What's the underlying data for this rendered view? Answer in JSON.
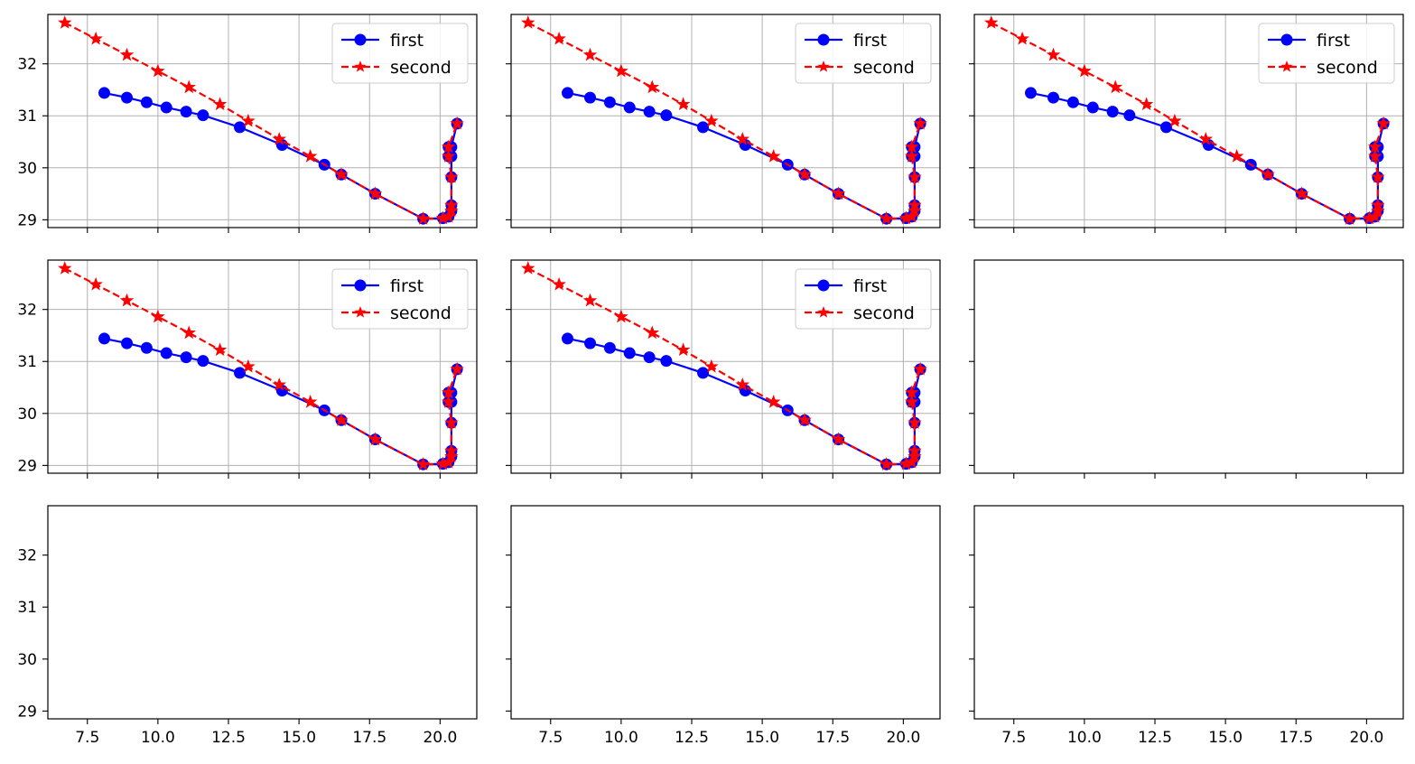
{
  "figure": {
    "grid_layout": {
      "rows": 3,
      "cols": 3
    },
    "colors": {
      "first": "#0000ff",
      "second": "#ff0000",
      "grid": "#b0b0b0",
      "axes": "#000000"
    }
  },
  "chart_data": [
    {
      "type": "line",
      "row": 0,
      "col": 0,
      "has_data": true,
      "grid": true,
      "legend": "upper right",
      "xlim": [
        6.1,
        21.3
      ],
      "ylim": [
        28.85,
        32.95
      ],
      "xticks": [
        7.5,
        10.0,
        12.5,
        15.0,
        17.5,
        20.0
      ],
      "xtick_labels_visible": false,
      "yticks": [
        29,
        30,
        31,
        32
      ],
      "ytick_labels": [
        "29",
        "30",
        "31",
        "32"
      ],
      "ytick_labels_visible": true,
      "series": [
        {
          "name": "first",
          "color": "#0000ff",
          "linestyle": "solid",
          "marker": "circle",
          "x": [
            8.1,
            8.9,
            9.6,
            10.3,
            11.0,
            11.6,
            12.9,
            14.4,
            15.9,
            16.5,
            17.7,
            19.4,
            20.1,
            20.3,
            20.4,
            20.4,
            20.4,
            20.4,
            20.3,
            20.3,
            20.4,
            20.6
          ],
          "y": [
            31.44,
            31.35,
            31.26,
            31.16,
            31.08,
            31.01,
            30.78,
            30.44,
            30.06,
            29.87,
            29.5,
            29.02,
            29.03,
            29.06,
            29.17,
            29.28,
            29.82,
            30.22,
            30.4,
            30.22,
            30.4,
            30.85
          ]
        },
        {
          "name": "second",
          "color": "#ff0000",
          "linestyle": "dashed",
          "marker": "star",
          "x": [
            6.7,
            7.8,
            8.9,
            10.0,
            11.1,
            12.2,
            13.2,
            14.3,
            15.4,
            16.5,
            17.7,
            19.4,
            20.1,
            20.3,
            20.4,
            20.4,
            20.4,
            20.3,
            20.3,
            20.6
          ],
          "y": [
            32.79,
            32.48,
            32.17,
            31.86,
            31.55,
            31.22,
            30.9,
            30.55,
            30.22,
            29.87,
            29.5,
            29.02,
            29.03,
            29.06,
            29.17,
            29.28,
            29.82,
            30.22,
            30.4,
            30.85
          ]
        }
      ]
    },
    {
      "type": "line",
      "row": 0,
      "col": 1,
      "has_data": true,
      "grid": true,
      "legend": "upper right",
      "xlim": [
        6.1,
        21.3
      ],
      "ylim": [
        28.85,
        32.95
      ],
      "xticks": [
        7.5,
        10.0,
        12.5,
        15.0,
        17.5,
        20.0
      ],
      "xtick_labels_visible": false,
      "yticks": [
        29,
        30,
        31,
        32
      ],
      "ytick_labels_visible": false,
      "series": [
        {
          "name": "first",
          "color": "#0000ff",
          "linestyle": "solid",
          "marker": "circle",
          "x": [
            8.1,
            8.9,
            9.6,
            10.3,
            11.0,
            11.6,
            12.9,
            14.4,
            15.9,
            16.5,
            17.7,
            19.4,
            20.1,
            20.3,
            20.4,
            20.4,
            20.4,
            20.4,
            20.3,
            20.3,
            20.4,
            20.6
          ],
          "y": [
            31.44,
            31.35,
            31.26,
            31.16,
            31.08,
            31.01,
            30.78,
            30.44,
            30.06,
            29.87,
            29.5,
            29.02,
            29.03,
            29.06,
            29.17,
            29.28,
            29.82,
            30.22,
            30.4,
            30.22,
            30.4,
            30.85
          ]
        },
        {
          "name": "second",
          "color": "#ff0000",
          "linestyle": "dashed",
          "marker": "star",
          "x": [
            6.7,
            7.8,
            8.9,
            10.0,
            11.1,
            12.2,
            13.2,
            14.3,
            15.4,
            16.5,
            17.7,
            19.4,
            20.1,
            20.3,
            20.4,
            20.4,
            20.4,
            20.3,
            20.3,
            20.6
          ],
          "y": [
            32.79,
            32.48,
            32.17,
            31.86,
            31.55,
            31.22,
            30.9,
            30.55,
            30.22,
            29.87,
            29.5,
            29.02,
            29.03,
            29.06,
            29.17,
            29.28,
            29.82,
            30.22,
            30.4,
            30.85
          ]
        }
      ]
    },
    {
      "type": "line",
      "row": 0,
      "col": 2,
      "has_data": true,
      "grid": true,
      "legend": "upper right",
      "xlim": [
        6.1,
        21.3
      ],
      "ylim": [
        28.85,
        32.95
      ],
      "xticks": [
        7.5,
        10.0,
        12.5,
        15.0,
        17.5,
        20.0
      ],
      "xtick_labels_visible": false,
      "yticks": [
        29,
        30,
        31,
        32
      ],
      "ytick_labels_visible": false,
      "series": [
        {
          "name": "first",
          "color": "#0000ff",
          "linestyle": "solid",
          "marker": "circle",
          "x": [
            8.1,
            8.9,
            9.6,
            10.3,
            11.0,
            11.6,
            12.9,
            14.4,
            15.9,
            16.5,
            17.7,
            19.4,
            20.1,
            20.3,
            20.4,
            20.4,
            20.4,
            20.4,
            20.3,
            20.3,
            20.4,
            20.6
          ],
          "y": [
            31.44,
            31.35,
            31.26,
            31.16,
            31.08,
            31.01,
            30.78,
            30.44,
            30.06,
            29.87,
            29.5,
            29.02,
            29.03,
            29.06,
            29.17,
            29.28,
            29.82,
            30.22,
            30.4,
            30.22,
            30.4,
            30.85
          ]
        },
        {
          "name": "second",
          "color": "#ff0000",
          "linestyle": "dashed",
          "marker": "star",
          "x": [
            6.7,
            7.8,
            8.9,
            10.0,
            11.1,
            12.2,
            13.2,
            14.3,
            15.4,
            16.5,
            17.7,
            19.4,
            20.1,
            20.3,
            20.4,
            20.4,
            20.4,
            20.3,
            20.3,
            20.6
          ],
          "y": [
            32.79,
            32.48,
            32.17,
            31.86,
            31.55,
            31.22,
            30.9,
            30.55,
            30.22,
            29.87,
            29.5,
            29.02,
            29.03,
            29.06,
            29.17,
            29.28,
            29.82,
            30.22,
            30.4,
            30.85
          ]
        }
      ]
    },
    {
      "type": "line",
      "row": 1,
      "col": 0,
      "has_data": true,
      "grid": true,
      "legend": "upper right",
      "xlim": [
        6.1,
        21.3
      ],
      "ylim": [
        28.85,
        32.95
      ],
      "xticks": [
        7.5,
        10.0,
        12.5,
        15.0,
        17.5,
        20.0
      ],
      "xtick_labels_visible": false,
      "yticks": [
        29,
        30,
        31,
        32
      ],
      "ytick_labels": [
        "29",
        "30",
        "31",
        "32"
      ],
      "ytick_labels_visible": true,
      "series": [
        {
          "name": "first",
          "color": "#0000ff",
          "linestyle": "solid",
          "marker": "circle",
          "x": [
            8.1,
            8.9,
            9.6,
            10.3,
            11.0,
            11.6,
            12.9,
            14.4,
            15.9,
            16.5,
            17.7,
            19.4,
            20.1,
            20.3,
            20.4,
            20.4,
            20.4,
            20.4,
            20.3,
            20.3,
            20.4,
            20.6
          ],
          "y": [
            31.44,
            31.35,
            31.26,
            31.16,
            31.08,
            31.01,
            30.78,
            30.44,
            30.06,
            29.87,
            29.5,
            29.02,
            29.03,
            29.06,
            29.17,
            29.28,
            29.82,
            30.22,
            30.4,
            30.22,
            30.4,
            30.85
          ]
        },
        {
          "name": "second",
          "color": "#ff0000",
          "linestyle": "dashed",
          "marker": "star",
          "x": [
            6.7,
            7.8,
            8.9,
            10.0,
            11.1,
            12.2,
            13.2,
            14.3,
            15.4,
            16.5,
            17.7,
            19.4,
            20.1,
            20.3,
            20.4,
            20.4,
            20.4,
            20.3,
            20.3,
            20.6
          ],
          "y": [
            32.79,
            32.48,
            32.17,
            31.86,
            31.55,
            31.22,
            30.9,
            30.55,
            30.22,
            29.87,
            29.5,
            29.02,
            29.03,
            29.06,
            29.17,
            29.28,
            29.82,
            30.22,
            30.4,
            30.85
          ]
        }
      ]
    },
    {
      "type": "line",
      "row": 1,
      "col": 1,
      "has_data": true,
      "grid": true,
      "legend": "upper right",
      "xlim": [
        6.1,
        21.3
      ],
      "ylim": [
        28.85,
        32.95
      ],
      "xticks": [
        7.5,
        10.0,
        12.5,
        15.0,
        17.5,
        20.0
      ],
      "xtick_labels_visible": false,
      "yticks": [
        29,
        30,
        31,
        32
      ],
      "ytick_labels_visible": false,
      "series": [
        {
          "name": "first",
          "color": "#0000ff",
          "linestyle": "solid",
          "marker": "circle",
          "x": [
            8.1,
            8.9,
            9.6,
            10.3,
            11.0,
            11.6,
            12.9,
            14.4,
            15.9,
            16.5,
            17.7,
            19.4,
            20.1,
            20.3,
            20.4,
            20.4,
            20.4,
            20.4,
            20.3,
            20.3,
            20.4,
            20.6
          ],
          "y": [
            31.44,
            31.35,
            31.26,
            31.16,
            31.08,
            31.01,
            30.78,
            30.44,
            30.06,
            29.87,
            29.5,
            29.02,
            29.03,
            29.06,
            29.17,
            29.28,
            29.82,
            30.22,
            30.4,
            30.22,
            30.4,
            30.85
          ]
        },
        {
          "name": "second",
          "color": "#ff0000",
          "linestyle": "dashed",
          "marker": "star",
          "x": [
            6.7,
            7.8,
            8.9,
            10.0,
            11.1,
            12.2,
            13.2,
            14.3,
            15.4,
            16.5,
            17.7,
            19.4,
            20.1,
            20.3,
            20.4,
            20.4,
            20.4,
            20.3,
            20.3,
            20.6
          ],
          "y": [
            32.79,
            32.48,
            32.17,
            31.86,
            31.55,
            31.22,
            30.9,
            30.55,
            30.22,
            29.87,
            29.5,
            29.02,
            29.03,
            29.06,
            29.17,
            29.28,
            29.82,
            30.22,
            30.4,
            30.85
          ]
        }
      ]
    },
    {
      "type": "line",
      "row": 1,
      "col": 2,
      "has_data": false,
      "grid": false,
      "xlim": [
        6.1,
        21.3
      ],
      "ylim": [
        28.85,
        32.95
      ],
      "xticks": [
        7.5,
        10.0,
        12.5,
        15.0,
        17.5,
        20.0
      ],
      "xtick_labels_visible": false,
      "yticks": [
        29,
        30,
        31,
        32
      ],
      "ytick_labels_visible": false,
      "series": []
    },
    {
      "type": "line",
      "row": 2,
      "col": 0,
      "has_data": false,
      "grid": false,
      "xlim": [
        6.1,
        21.3
      ],
      "ylim": [
        28.85,
        32.95
      ],
      "xticks": [
        7.5,
        10.0,
        12.5,
        15.0,
        17.5,
        20.0
      ],
      "xtick_labels": [
        "7.5",
        "10.0",
        "12.5",
        "15.0",
        "17.5",
        "20.0"
      ],
      "xtick_labels_visible": true,
      "yticks": [
        29,
        30,
        31,
        32
      ],
      "ytick_labels": [
        "29",
        "30",
        "31",
        "32"
      ],
      "ytick_labels_visible": true,
      "series": []
    },
    {
      "type": "line",
      "row": 2,
      "col": 1,
      "has_data": false,
      "grid": false,
      "xlim": [
        6.1,
        21.3
      ],
      "ylim": [
        28.85,
        32.95
      ],
      "xticks": [
        7.5,
        10.0,
        12.5,
        15.0,
        17.5,
        20.0
      ],
      "xtick_labels": [
        "7.5",
        "10.0",
        "12.5",
        "15.0",
        "17.5",
        "20.0"
      ],
      "xtick_labels_visible": true,
      "yticks": [
        29,
        30,
        31,
        32
      ],
      "ytick_labels_visible": false,
      "series": []
    },
    {
      "type": "line",
      "row": 2,
      "col": 2,
      "has_data": false,
      "grid": false,
      "xlim": [
        6.1,
        21.3
      ],
      "ylim": [
        28.85,
        32.95
      ],
      "xticks": [
        7.5,
        10.0,
        12.5,
        15.0,
        17.5,
        20.0
      ],
      "xtick_labels": [
        "7.5",
        "10.0",
        "12.5",
        "15.0",
        "17.5",
        "20.0"
      ],
      "xtick_labels_visible": true,
      "yticks": [
        29,
        30,
        31,
        32
      ],
      "ytick_labels_visible": false,
      "series": []
    }
  ]
}
